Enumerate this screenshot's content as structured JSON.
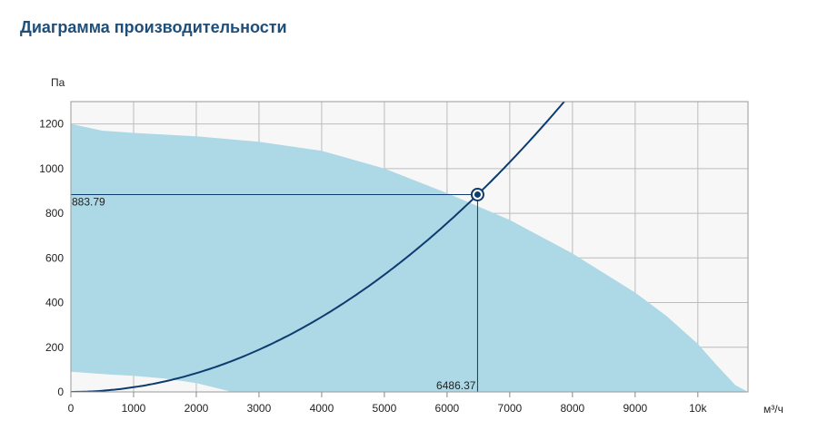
{
  "page_title": "Диаграмма производительности",
  "chart_data": {
    "type": "area",
    "ylabel": "Па",
    "xlabel": "м³/ч",
    "xlim": [
      0,
      10800
    ],
    "ylim": [
      0,
      1300
    ],
    "x_ticks": [
      0,
      1000,
      2000,
      3000,
      4000,
      5000,
      6000,
      7000,
      8000,
      9000,
      10000
    ],
    "x_tick_labels": [
      "0",
      "1000",
      "2000",
      "3000",
      "4000",
      "5000",
      "6000",
      "7000",
      "8000",
      "9000",
      "10k"
    ],
    "y_ticks": [
      0,
      200,
      400,
      600,
      800,
      1000,
      1200
    ],
    "y_tick_labels": [
      "0",
      "200",
      "400",
      "600",
      "800",
      "1000",
      "1200"
    ],
    "grid": true,
    "colors": {
      "area_fill": "#add8e6",
      "curve": "#0d3b6e",
      "plot_bg": "#f7f7f7",
      "grid": "#bcbcbc"
    },
    "upper_envelope": [
      [
        0,
        1200
      ],
      [
        500,
        1170
      ],
      [
        1000,
        1160
      ],
      [
        2000,
        1145
      ],
      [
        3000,
        1120
      ],
      [
        4000,
        1080
      ],
      [
        5000,
        1000
      ],
      [
        6000,
        890
      ],
      [
        7000,
        770
      ],
      [
        8000,
        620
      ],
      [
        9000,
        445
      ],
      [
        9500,
        340
      ],
      [
        10000,
        215
      ],
      [
        10300,
        120
      ],
      [
        10600,
        30
      ],
      [
        10800,
        0
      ]
    ],
    "lower_envelope": [
      [
        0,
        90
      ],
      [
        500,
        80
      ],
      [
        1000,
        72
      ],
      [
        1500,
        60
      ],
      [
        2000,
        40
      ],
      [
        2500,
        5
      ],
      [
        2550,
        0
      ]
    ],
    "system_curve": {
      "coefficient": 2.1e-05,
      "x_max": 7900
    },
    "operating_point": {
      "x": 6486.37,
      "y": 883.79
    },
    "operating_point_labels": {
      "x": "6486.37",
      "y": "883.79"
    }
  }
}
